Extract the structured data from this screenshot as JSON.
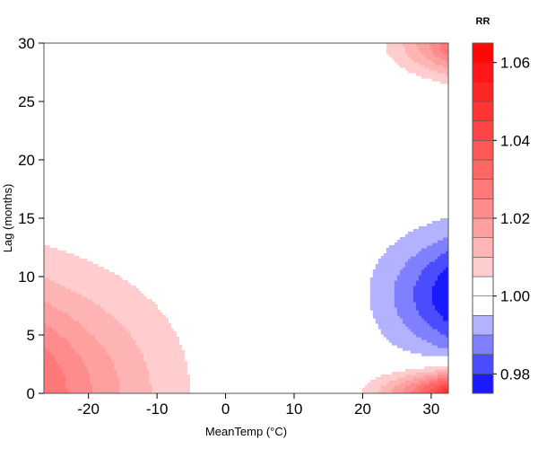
{
  "chart_data": {
    "type": "heatmap",
    "subtype": "filled-contour",
    "xlabel": "MeanTemp (°C)",
    "ylabel": "Lag (months)",
    "xlim": [
      -26.5,
      32.5
    ],
    "ylim": [
      0,
      30
    ],
    "x_ticks": [
      -20,
      -10,
      0,
      10,
      20,
      30
    ],
    "x_tick_labels": [
      "-20",
      "-10",
      "0",
      "10",
      "20",
      "30"
    ],
    "y_ticks": [
      0,
      5,
      10,
      15,
      20,
      25,
      30
    ],
    "y_tick_labels": [
      "0",
      "5",
      "10",
      "15",
      "20",
      "25",
      "30"
    ],
    "grid": false,
    "legend": {
      "title": "RR",
      "position": "right",
      "range": [
        0.975,
        1.065
      ],
      "levels": [
        0.975,
        0.98,
        0.985,
        0.99,
        0.995,
        1.0,
        1.005,
        1.01,
        1.015,
        1.02,
        1.025,
        1.03,
        1.035,
        1.04,
        1.045,
        1.05,
        1.055,
        1.06,
        1.065
      ],
      "tick_values": [
        0.98,
        1.0,
        1.02,
        1.04,
        1.06
      ],
      "tick_labels": [
        "0.98",
        "1.00",
        "1.02",
        "1.04",
        "1.06"
      ]
    },
    "regions": [
      {
        "name": "cold-short-lag-increase",
        "x_range": [
          -26.5,
          5
        ],
        "lag_range": [
          0,
          13.5
        ],
        "rr_peak": 1.03,
        "rr_at_peak_location": "MeanTemp -26, lag 0"
      },
      {
        "name": "heat-mid-lag-decrease",
        "x_range": [
          16,
          32.5
        ],
        "lag_range": [
          3.5,
          15.5
        ],
        "rr_min": 0.977,
        "rr_at_min_location": "MeanTemp 32, lag 8"
      },
      {
        "name": "heat-short-lag-increase",
        "x_range": [
          15,
          32.5
        ],
        "lag_range": [
          0,
          3
        ],
        "rr_peak": 1.05,
        "rr_at_peak_location": "MeanTemp 32, lag 0"
      },
      {
        "name": "heat-long-lag-increase",
        "x_range": [
          18,
          32.5
        ],
        "lag_range": [
          26.5,
          30
        ],
        "rr_peak": 1.03,
        "rr_at_peak_location": "MeanTemp 32, lag 30"
      }
    ],
    "colors": {
      "high": "#ff0000",
      "null": "#ffffff",
      "low": "#0000ff",
      "frame": "#555555"
    }
  }
}
